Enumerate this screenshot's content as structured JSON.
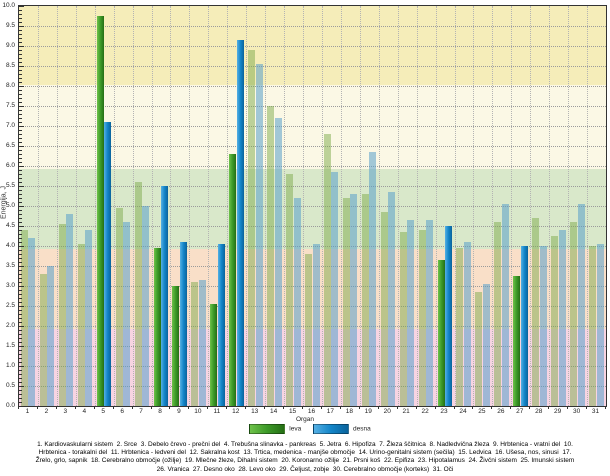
{
  "chart_data": {
    "type": "bar",
    "title": "",
    "xlabel": "Organ",
    "ylabel": "Energija, J",
    "ylim": [
      0,
      10
    ],
    "y_tick_step": 0.5,
    "grid": "dotted",
    "legend_position": "bottom",
    "categories": [
      1,
      2,
      3,
      4,
      5,
      6,
      7,
      8,
      9,
      10,
      11,
      12,
      13,
      14,
      15,
      16,
      17,
      18,
      19,
      20,
      21,
      22,
      23,
      24,
      25,
      26,
      27,
      28,
      29,
      30,
      31
    ],
    "series": [
      {
        "name": "leva",
        "color": "#3d9a28",
        "faded_color": "rgba(125,170,75,0.50)",
        "values": [
          4.4,
          3.3,
          4.55,
          4.05,
          9.75,
          4.95,
          5.6,
          3.95,
          3.0,
          3.1,
          2.55,
          6.3,
          8.9,
          7.5,
          5.8,
          3.8,
          6.8,
          5.2,
          5.3,
          4.85,
          4.35,
          4.4,
          3.65,
          3.95,
          2.85,
          4.6,
          3.25,
          4.7,
          4.25,
          4.6,
          4.0
        ]
      },
      {
        "name": "desna",
        "color": "#1385c8",
        "faded_color": "rgba(88,158,203,0.55)",
        "values": [
          4.2,
          3.5,
          4.8,
          4.4,
          7.1,
          4.6,
          5.0,
          5.5,
          4.1,
          3.15,
          4.05,
          9.15,
          8.55,
          7.2,
          5.2,
          4.05,
          5.85,
          5.3,
          6.35,
          5.35,
          4.65,
          4.65,
          4.5,
          4.1,
          3.05,
          5.05,
          4.0,
          4.0,
          4.4,
          5.05,
          4.05
        ]
      }
    ],
    "highlighted_categories": [
      5,
      8,
      9,
      11,
      12,
      23,
      27
    ],
    "bands": [
      {
        "from": 0,
        "to": 1.93,
        "color": "#f7d4e2"
      },
      {
        "from": 1.93,
        "to": 3.93,
        "color": "#f9dfc8"
      },
      {
        "from": 3.93,
        "to": 5.93,
        "color": "#d9e8ca"
      },
      {
        "from": 5.93,
        "to": 8.02,
        "color": "#fbf8e5"
      },
      {
        "from": 8.02,
        "to": 10,
        "color": "#f5edb9"
      }
    ]
  },
  "legend": {
    "title": "Organ",
    "items": [
      {
        "label": "leva",
        "color": "#3d9a28"
      },
      {
        "label": "desna",
        "color": "#1385c8"
      }
    ]
  },
  "caption": {
    "text": "1. Kardiovaskularni sistem  2. Srce  3. Debelo črevo - prečni del  4. Trebušna slinavka - pankreas  5. Jetra  6. Hipofiza  7. Žleza ščitnica  8. Nadledvična žleza  9. Hrbtenica - vratni del  10.\nHrbtenica - torakalni del  11. Hrbtenica - ledveni del  12. Sakralna kost  13. Trtica, medenica - manjše območje  14. Urino-genitalni sistem (sečila)  15. Ledvica  16. Ušesa, nos, sinusi  17.\nŽrelo, grlo, sapnik  18. Cerebralno območje (ožilje)  19. Mlečne žleze, Dihalni sistem  20. Koronarno ožilje  21. Prsni koš  22. Epifiza  23. Hipotalamus  24. Živčni sistem  25. Imunski sistem\n26. Vranica  27. Desno oko  28. Levo oko  29. Čeljust, zobje  30. Cerebralno območje (korteks)  31. Oči"
  }
}
